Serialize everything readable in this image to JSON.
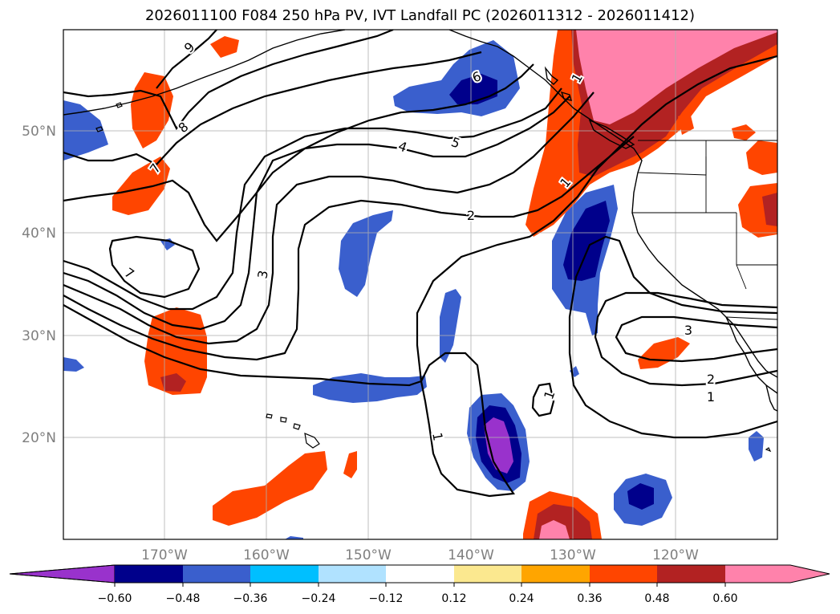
{
  "title": "2026011100 F084 250 hPa PV, IVT Landfall PC (2026011312 - 2026011412)",
  "lat_labels": [
    "50°N",
    "40°N",
    "30°N",
    "20°N"
  ],
  "lon_labels": [
    "170°W",
    "160°W",
    "150°W",
    "140°W",
    "130°W",
    "120°W"
  ],
  "colorbar": {
    "colors": [
      "#9932cc",
      "#00008b",
      "#3a5fcd",
      "#00bfff",
      "#b0e2ff",
      "#ffffff",
      "#fbe88f",
      "#ffa500",
      "#ff4500",
      "#b22222",
      "#ff82ab"
    ],
    "extend_min_color": "#9932cc",
    "extend_max_color": "#ff82ab",
    "tick_labels": [
      "−0.60",
      "−0.48",
      "−0.36",
      "−0.24",
      "−0.12",
      "0.12",
      "0.24",
      "0.36",
      "0.48",
      "0.60"
    ]
  },
  "contour_labels": [
    "9",
    "8",
    "7",
    "7",
    "6",
    "5",
    "4",
    "3",
    "2",
    "1",
    "1",
    "1",
    "1",
    "3",
    "2",
    "1"
  ]
}
